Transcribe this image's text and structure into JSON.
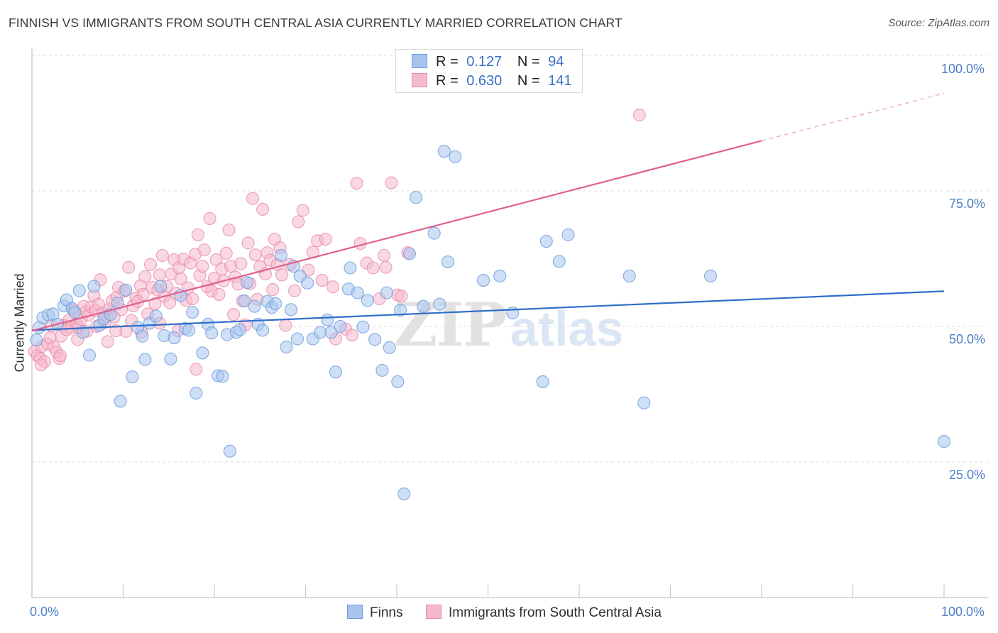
{
  "title": "FINNISH VS IMMIGRANTS FROM SOUTH CENTRAL ASIA CURRENTLY MARRIED CORRELATION CHART",
  "source": "Source: ZipAtlas.com",
  "watermark": {
    "zip": "ZIP",
    "atlas": "atlas"
  },
  "stats_legend": [
    {
      "r_label": "R =",
      "r_value": "0.127",
      "n_label": "N =",
      "n_value": "94"
    },
    {
      "r_label": "R =",
      "r_value": "0.630",
      "n_label": "N =",
      "n_value": "141"
    }
  ],
  "bottom_legend": [
    "Finns",
    "Immigrants from South Central Asia"
  ],
  "colors": {
    "finns_fill": "#a8c4ee",
    "finns_stroke": "#6b9ad8",
    "finns_line": "#2f6fca",
    "sca_fill": "#f6b8cc",
    "sca_stroke": "#e88aa8",
    "sca_line": "#e0608e",
    "axis_label": "#4a7fc8",
    "grid": "#dcdcdc"
  },
  "chart_data": {
    "type": "scatter",
    "title": "FINNISH VS IMMIGRANTS FROM SOUTH CENTRAL ASIA CURRENTLY MARRIED CORRELATION CHART",
    "xlabel": "",
    "ylabel": "Currently Married",
    "xlim": [
      0,
      100
    ],
    "ylim": [
      0,
      104
    ],
    "x_tick_labels": [
      "0.0%",
      "100.0%"
    ],
    "y_tick_labels": [
      "25.0%",
      "50.0%",
      "75.0%",
      "100.0%"
    ],
    "y_ticks": [
      25,
      50,
      75,
      100
    ],
    "grid": true,
    "legend_position": "top-center",
    "series": [
      {
        "name": "Finns",
        "r": 0.127,
        "n": 94,
        "trend": {
          "x": [
            0,
            100
          ],
          "y": [
            49.3,
            56.5
          ],
          "dashed_from": null
        },
        "points": [
          [
            0.5,
            47.5
          ],
          [
            0.8,
            49.8
          ],
          [
            1.2,
            51.6
          ],
          [
            1.8,
            52.1
          ],
          [
            2.3,
            52.3
          ],
          [
            2.8,
            50.4
          ],
          [
            3.5,
            53.8
          ],
          [
            3.8,
            54.9
          ],
          [
            4.4,
            53.3
          ],
          [
            4.7,
            52.6
          ],
          [
            5.2,
            56.6
          ],
          [
            5.6,
            48.9
          ],
          [
            6.3,
            44.7
          ],
          [
            6.8,
            57.4
          ],
          [
            7.4,
            50.2
          ],
          [
            7.9,
            51.4
          ],
          [
            8.6,
            52.2
          ],
          [
            9.4,
            54.3
          ],
          [
            9.7,
            36.2
          ],
          [
            10.3,
            56.7
          ],
          [
            11.0,
            40.7
          ],
          [
            11.6,
            49.8
          ],
          [
            12.1,
            48.2
          ],
          [
            12.4,
            43.9
          ],
          [
            12.9,
            50.6
          ],
          [
            13.6,
            51.9
          ],
          [
            14.1,
            57.4
          ],
          [
            14.5,
            48.3
          ],
          [
            15.2,
            44.0
          ],
          [
            15.6,
            47.9
          ],
          [
            16.3,
            55.7
          ],
          [
            16.8,
            49.6
          ],
          [
            17.2,
            49.3
          ],
          [
            17.6,
            52.6
          ],
          [
            18.0,
            37.7
          ],
          [
            18.7,
            45.1
          ],
          [
            19.3,
            50.4
          ],
          [
            19.7,
            48.8
          ],
          [
            20.4,
            40.9
          ],
          [
            20.9,
            40.8
          ],
          [
            21.4,
            48.5
          ],
          [
            21.7,
            27.0
          ],
          [
            22.4,
            48.9
          ],
          [
            22.8,
            49.4
          ],
          [
            23.3,
            54.7
          ],
          [
            23.6,
            58.1
          ],
          [
            24.4,
            53.7
          ],
          [
            24.8,
            50.4
          ],
          [
            25.3,
            49.3
          ],
          [
            25.8,
            54.6
          ],
          [
            26.3,
            53.5
          ],
          [
            26.7,
            54.2
          ],
          [
            27.3,
            63.1
          ],
          [
            27.9,
            46.2
          ],
          [
            28.4,
            53.1
          ],
          [
            28.7,
            61.1
          ],
          [
            29.1,
            47.7
          ],
          [
            29.4,
            59.3
          ],
          [
            30.2,
            58.0
          ],
          [
            30.8,
            47.7
          ],
          [
            31.6,
            48.9
          ],
          [
            32.4,
            51.2
          ],
          [
            32.8,
            48.9
          ],
          [
            33.3,
            41.6
          ],
          [
            33.8,
            50.0
          ],
          [
            34.7,
            56.9
          ],
          [
            34.9,
            60.8
          ],
          [
            35.7,
            56.2
          ],
          [
            36.3,
            49.9
          ],
          [
            36.8,
            54.8
          ],
          [
            37.6,
            47.6
          ],
          [
            38.4,
            41.9
          ],
          [
            38.9,
            56.2
          ],
          [
            39.2,
            46.1
          ],
          [
            40.1,
            39.8
          ],
          [
            40.4,
            53.0
          ],
          [
            41.4,
            63.4
          ],
          [
            40.8,
            19.1
          ],
          [
            42.1,
            73.8
          ],
          [
            42.9,
            53.7
          ],
          [
            44.1,
            67.2
          ],
          [
            44.7,
            54.1
          ],
          [
            45.2,
            82.3
          ],
          [
            45.6,
            61.9
          ],
          [
            46.4,
            81.3
          ],
          [
            49.5,
            58.5
          ],
          [
            51.3,
            59.3
          ],
          [
            52.7,
            52.5
          ],
          [
            56.0,
            39.8
          ],
          [
            56.4,
            65.7
          ],
          [
            57.8,
            62.0
          ],
          [
            58.8,
            66.9
          ],
          [
            65.5,
            59.3
          ],
          [
            67.1,
            35.9
          ],
          [
            74.4,
            59.3
          ],
          [
            100.0,
            28.8
          ]
        ]
      },
      {
        "name": "Immigrants from South Central Asia",
        "r": 0.63,
        "n": 141,
        "trend": {
          "x": [
            0,
            100
          ],
          "y": [
            49.2,
            93.0
          ],
          "dashed_from": 80
        },
        "points": [
          [
            0.3,
            45.4
          ],
          [
            0.6,
            44.6
          ],
          [
            0.9,
            44.1
          ],
          [
            1.1,
            46.3
          ],
          [
            1.4,
            43.5
          ],
          [
            1.7,
            46.8
          ],
          [
            2.0,
            47.9
          ],
          [
            2.4,
            46.2
          ],
          [
            2.7,
            45.3
          ],
          [
            3.0,
            44.1
          ],
          [
            3.2,
            48.2
          ],
          [
            3.5,
            50.2
          ],
          [
            3.8,
            49.4
          ],
          [
            4.1,
            51.2
          ],
          [
            4.3,
            49.8
          ],
          [
            4.6,
            53.0
          ],
          [
            4.9,
            50.4
          ],
          [
            5.1,
            49.9
          ],
          [
            5.4,
            51.3
          ],
          [
            5.7,
            53.7
          ],
          [
            5.9,
            52.7
          ],
          [
            6.2,
            52.1
          ],
          [
            6.5,
            53.6
          ],
          [
            6.8,
            55.7
          ],
          [
            7.0,
            52.9
          ],
          [
            7.3,
            54.1
          ],
          [
            7.5,
            58.6
          ],
          [
            7.8,
            52.5
          ],
          [
            8.0,
            50.7
          ],
          [
            8.2,
            51.9
          ],
          [
            8.5,
            53.2
          ],
          [
            8.8,
            54.7
          ],
          [
            9.0,
            51.7
          ],
          [
            9.3,
            55.4
          ],
          [
            9.5,
            57.2
          ],
          [
            9.8,
            53.1
          ],
          [
            10.1,
            56.5
          ],
          [
            10.3,
            49.1
          ],
          [
            10.6,
            60.9
          ],
          [
            10.9,
            51.1
          ],
          [
            11.1,
            53.8
          ],
          [
            11.4,
            55.2
          ],
          [
            11.6,
            54.6
          ],
          [
            11.9,
            57.5
          ],
          [
            12.2,
            55.9
          ],
          [
            12.4,
            59.2
          ],
          [
            12.7,
            52.3
          ],
          [
            13.0,
            61.4
          ],
          [
            13.2,
            57.2
          ],
          [
            13.5,
            54.2
          ],
          [
            13.8,
            56.7
          ],
          [
            14.0,
            59.5
          ],
          [
            14.3,
            63.1
          ],
          [
            14.5,
            55.6
          ],
          [
            14.8,
            57.4
          ],
          [
            15.1,
            54.4
          ],
          [
            15.3,
            59.7
          ],
          [
            15.6,
            62.3
          ],
          [
            15.8,
            56.1
          ],
          [
            16.1,
            60.8
          ],
          [
            16.3,
            58.8
          ],
          [
            16.6,
            62.4
          ],
          [
            16.9,
            54.8
          ],
          [
            17.1,
            57.1
          ],
          [
            17.4,
            61.7
          ],
          [
            17.6,
            55.1
          ],
          [
            17.9,
            63.3
          ],
          [
            18.2,
            66.9
          ],
          [
            18.4,
            59.4
          ],
          [
            18.7,
            61.1
          ],
          [
            18.9,
            64.1
          ],
          [
            19.2,
            57.3
          ],
          [
            19.5,
            69.9
          ],
          [
            19.7,
            56.5
          ],
          [
            20.0,
            58.9
          ],
          [
            20.2,
            62.3
          ],
          [
            20.5,
            55.9
          ],
          [
            20.8,
            60.6
          ],
          [
            21.0,
            58.4
          ],
          [
            21.3,
            63.5
          ],
          [
            21.6,
            67.8
          ],
          [
            21.8,
            61.1
          ],
          [
            22.1,
            52.2
          ],
          [
            22.3,
            59.1
          ],
          [
            22.6,
            57.8
          ],
          [
            22.9,
            61.6
          ],
          [
            23.1,
            54.7
          ],
          [
            23.4,
            50.3
          ],
          [
            23.7,
            65.4
          ],
          [
            23.9,
            57.9
          ],
          [
            24.2,
            73.6
          ],
          [
            24.5,
            63.2
          ],
          [
            24.7,
            55.0
          ],
          [
            25.0,
            61.0
          ],
          [
            25.3,
            71.6
          ],
          [
            25.6,
            59.7
          ],
          [
            25.8,
            63.6
          ],
          [
            26.1,
            62.2
          ],
          [
            26.4,
            56.8
          ],
          [
            26.6,
            66.1
          ],
          [
            26.9,
            61.4
          ],
          [
            27.2,
            64.5
          ],
          [
            27.4,
            59.5
          ],
          [
            27.8,
            50.2
          ],
          [
            28.3,
            61.4
          ],
          [
            28.8,
            56.6
          ],
          [
            29.2,
            69.3
          ],
          [
            29.7,
            71.4
          ],
          [
            30.3,
            60.4
          ],
          [
            30.8,
            63.7
          ],
          [
            31.3,
            65.8
          ],
          [
            31.8,
            58.5
          ],
          [
            32.2,
            66.1
          ],
          [
            33.0,
            57.3
          ],
          [
            33.3,
            47.7
          ],
          [
            34.4,
            49.5
          ],
          [
            35.1,
            48.4
          ],
          [
            35.6,
            76.4
          ],
          [
            36.0,
            65.3
          ],
          [
            36.7,
            61.7
          ],
          [
            37.4,
            60.8
          ],
          [
            38.1,
            55.1
          ],
          [
            38.6,
            63.1
          ],
          [
            38.8,
            60.9
          ],
          [
            39.4,
            76.5
          ],
          [
            40.1,
            55.8
          ],
          [
            40.5,
            55.6
          ],
          [
            41.2,
            63.6
          ],
          [
            66.6,
            89.0
          ],
          [
            1.0,
            42.9
          ],
          [
            2.2,
            50.1
          ],
          [
            3.1,
            44.6
          ],
          [
            5.0,
            47.6
          ],
          [
            6.0,
            49.1
          ],
          [
            7.1,
            50.0
          ],
          [
            8.3,
            47.2
          ],
          [
            9.2,
            49.2
          ],
          [
            12.0,
            48.9
          ],
          [
            14.0,
            50.6
          ],
          [
            16.0,
            49.2
          ],
          [
            18.0,
            42.1
          ]
        ]
      }
    ]
  }
}
